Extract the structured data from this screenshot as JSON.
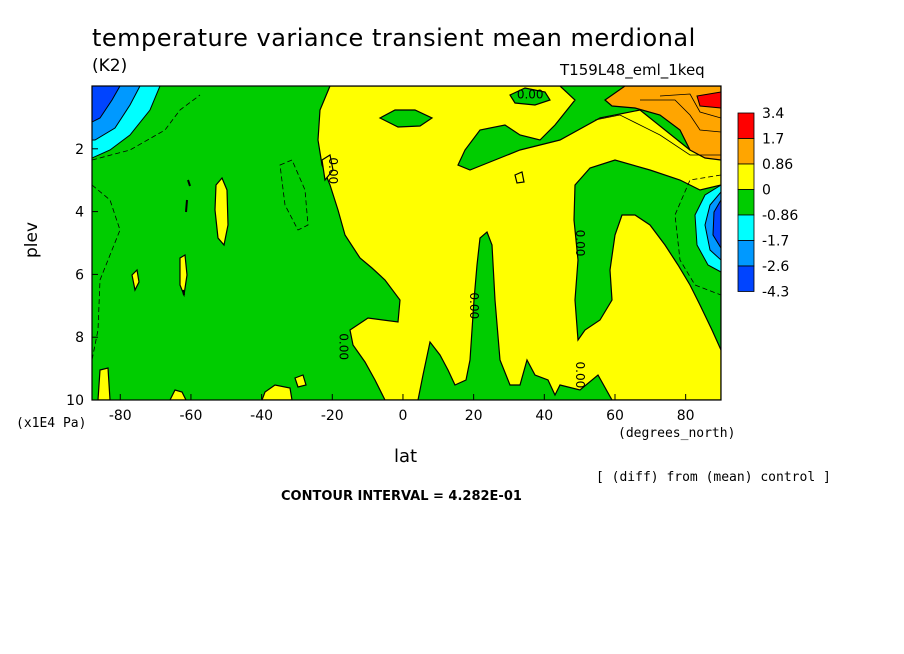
{
  "header": {
    "title": "temperature variance transient mean merdional",
    "units": "(K2)",
    "run": "T159L48_eml_1keq"
  },
  "footer": {
    "y_units": "(x1E4 Pa)",
    "x_units": "(degrees_north)",
    "note": "[ (diff) from (mean) control ]",
    "contour_interval": "CONTOUR INTERVAL = 4.282E-01"
  },
  "chart_data": {
    "type": "heatmap",
    "title": "temperature variance transient mean merdional",
    "xlabel": "lat",
    "ylabel": "plev",
    "xlim": [
      -88,
      90
    ],
    "ylim": [
      10,
      0
    ],
    "y_reversed": true,
    "x_ticks": [
      -80,
      -60,
      -40,
      -20,
      0,
      20,
      40,
      60,
      80
    ],
    "x_tick_labels": [
      "-80",
      "-60",
      "-40",
      "-20",
      "0",
      "20",
      "40",
      "60",
      "80"
    ],
    "y_ticks": [
      2,
      4,
      6,
      8,
      10
    ],
    "y_tick_labels": [
      "2",
      "4",
      "6",
      "8",
      "10"
    ],
    "grid": false,
    "legend_position": "right",
    "colorbar": {
      "labels": [
        "3.4",
        "1.7",
        "0.86",
        "0",
        "-0.86",
        "-1.7",
        "-2.6",
        "-4.3"
      ],
      "colors": [
        "#ff0000",
        "#ffa500",
        "#ffff00",
        "#00cc00",
        "#00ffff",
        "#0099ff",
        "#0044ff"
      ]
    },
    "contour_labels": [
      {
        "text": "0.00",
        "x": 36,
        "y": 0.4
      },
      {
        "text": "0.00",
        "x": -21,
        "y": 2.7
      },
      {
        "text": "0.00",
        "x": -18,
        "y": 8.3
      },
      {
        "text": "0.00",
        "x": 19,
        "y": 7.0
      },
      {
        "text": "0.00",
        "x": 49,
        "y": 5.0
      },
      {
        "text": "0.00",
        "x": 49,
        "y": 9.2
      }
    ]
  },
  "colors": {
    "green": "#00cc00",
    "yellow": "#ffff00",
    "orange": "#ffa500",
    "red": "#ff0000",
    "cyan": "#00ffff",
    "lightblue": "#0099ff",
    "blue": "#0044ff"
  }
}
